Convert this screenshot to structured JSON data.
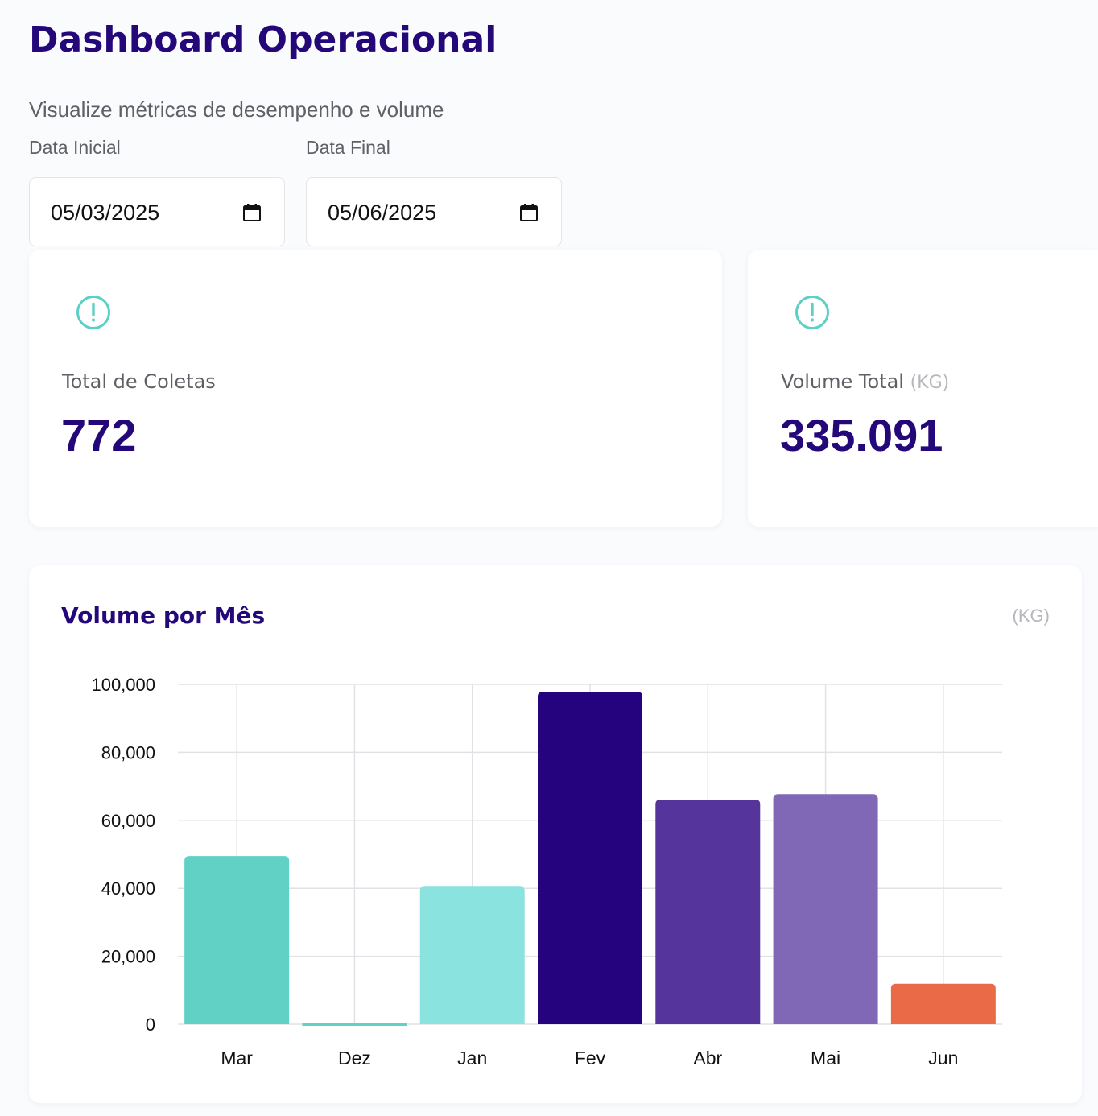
{
  "header": {
    "title": "Dashboard Operacional",
    "subtitle": "Visualize métricas de desempenho e volume"
  },
  "filters": {
    "start_label": "Data Inicial",
    "start_value": "05/03/2025",
    "end_label": "Data Final",
    "end_value": "05/06/2025"
  },
  "cards": [
    {
      "label": "Total de Coletas",
      "unit": "",
      "value": "772",
      "icon": "alert-circle-icon"
    },
    {
      "label": "Volume Total",
      "unit": "(KG)",
      "value": "335.091",
      "icon": "alert-circle-icon"
    }
  ],
  "colors": {
    "brand": "#24087a",
    "accent_teal": "#5ed0c4",
    "icon_teal": "#5cd0c6"
  },
  "chart_data": {
    "type": "bar",
    "title": "Volume por Mês",
    "unit_label": "(KG)",
    "categories": [
      "Mar",
      "Dez",
      "Jan",
      "Fev",
      "Abr",
      "Mai",
      "Jun"
    ],
    "values": [
      49500,
      0,
      40700,
      97800,
      66100,
      67700,
      11900
    ],
    "colors": [
      "#62d1c5",
      "#62d1c5",
      "#8be3df",
      "#25037f",
      "#55349c",
      "#8068b6",
      "#ea6a47"
    ],
    "ylim": [
      0,
      100000
    ],
    "yticks": [
      0,
      20000,
      40000,
      60000,
      80000,
      100000
    ],
    "ytick_labels": [
      "0",
      "20,000",
      "40,000",
      "60,000",
      "80,000",
      "100,000"
    ],
    "xlabel": "",
    "ylabel": "",
    "grid": true
  }
}
